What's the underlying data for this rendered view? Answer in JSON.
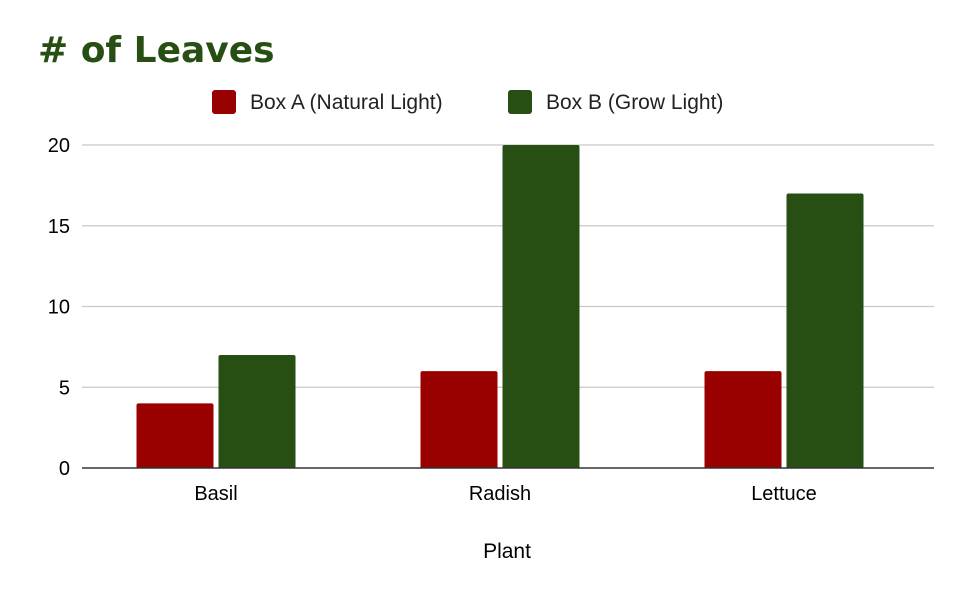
{
  "chart_data": {
    "type": "bar",
    "title": "# of Leaves",
    "xlabel": "Plant",
    "ylabel": "",
    "categories": [
      "Basil",
      "Radish",
      "Lettuce"
    ],
    "series": [
      {
        "name": "Box A (Natural Light)",
        "color": "#990000",
        "values": [
          4,
          6,
          6
        ]
      },
      {
        "name": "Box B (Grow Light)",
        "color": "#274e13",
        "values": [
          7,
          20,
          17
        ]
      }
    ],
    "ylim": [
      0,
      20
    ],
    "yticks": [
      0,
      5,
      10,
      15,
      20
    ],
    "grid": true,
    "legend_position": "top"
  },
  "colors": {
    "title": "#274e13",
    "gridline": "#c8c8c8",
    "axis": "#333333"
  }
}
